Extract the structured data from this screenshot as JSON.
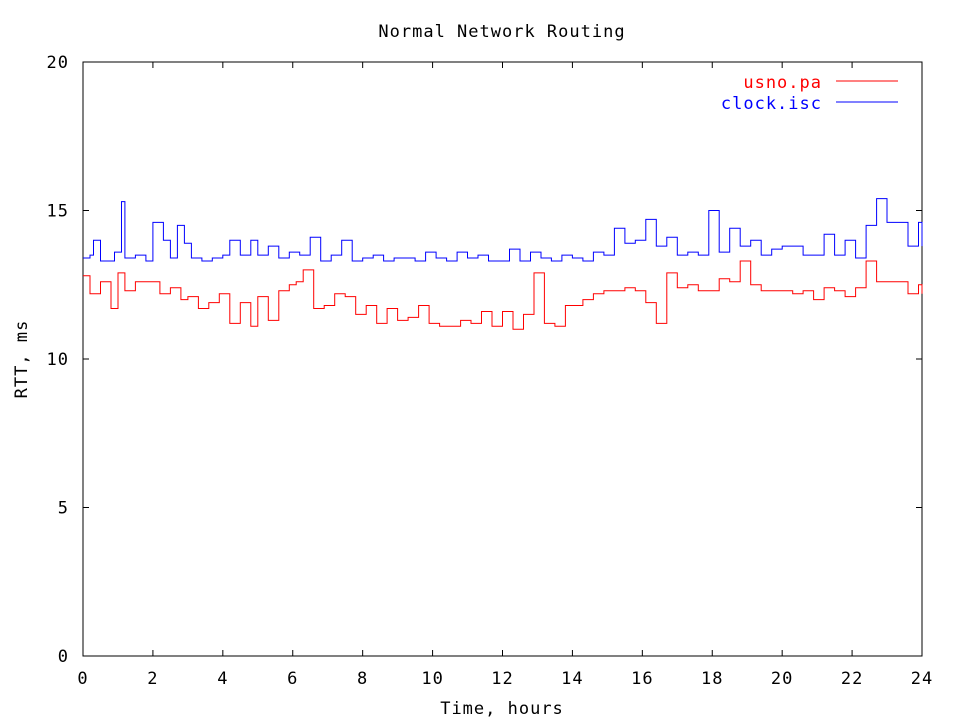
{
  "chart_data": {
    "type": "line",
    "title": "Normal Network Routing",
    "xlabel": "Time, hours",
    "ylabel": "RTT, ms",
    "xlim": [
      0,
      24
    ],
    "ylim": [
      0,
      20
    ],
    "xticks": [
      0,
      2,
      4,
      6,
      8,
      10,
      12,
      14,
      16,
      18,
      20,
      22,
      24
    ],
    "yticks": [
      0,
      5,
      10,
      15,
      20
    ],
    "grid": false,
    "legend_position": "top-right",
    "series": [
      {
        "name": "usno.pa",
        "color": "#ff0000",
        "x": [
          0,
          0.2,
          0.5,
          0.8,
          1.0,
          1.2,
          1.5,
          1.8,
          2.0,
          2.2,
          2.5,
          2.8,
          3.0,
          3.3,
          3.6,
          3.9,
          4.2,
          4.5,
          4.8,
          5.0,
          5.3,
          5.6,
          5.9,
          6.1,
          6.3,
          6.6,
          6.9,
          7.2,
          7.5,
          7.8,
          8.1,
          8.4,
          8.7,
          9.0,
          9.3,
          9.6,
          9.9,
          10.2,
          10.5,
          10.8,
          11.1,
          11.4,
          11.7,
          12.0,
          12.3,
          12.6,
          12.9,
          13.2,
          13.5,
          13.8,
          14.0,
          14.3,
          14.6,
          14.9,
          15.2,
          15.5,
          15.8,
          16.1,
          16.4,
          16.7,
          17.0,
          17.3,
          17.6,
          17.9,
          18.2,
          18.5,
          18.8,
          19.1,
          19.4,
          19.7,
          20.0,
          20.3,
          20.6,
          20.9,
          21.2,
          21.5,
          21.8,
          22.1,
          22.4,
          22.7,
          23.0,
          23.3,
          23.6,
          23.9,
          24.0
        ],
        "values": [
          12.8,
          12.2,
          12.6,
          11.7,
          12.9,
          12.3,
          12.6,
          12.6,
          12.6,
          12.2,
          12.4,
          12.0,
          12.1,
          11.7,
          11.9,
          12.2,
          11.2,
          11.9,
          11.1,
          12.1,
          11.3,
          12.3,
          12.5,
          12.6,
          13.0,
          11.7,
          11.8,
          12.2,
          12.1,
          11.5,
          11.8,
          11.2,
          11.7,
          11.3,
          11.4,
          11.8,
          11.2,
          11.1,
          11.1,
          11.3,
          11.2,
          11.6,
          11.1,
          11.6,
          11.0,
          11.5,
          12.9,
          11.2,
          11.1,
          11.8,
          11.8,
          12.0,
          12.2,
          12.3,
          12.3,
          12.4,
          12.3,
          11.9,
          11.2,
          12.9,
          12.4,
          12.5,
          12.3,
          12.3,
          12.7,
          12.6,
          13.3,
          12.5,
          12.3,
          12.3,
          12.3,
          12.2,
          12.3,
          12.0,
          12.4,
          12.3,
          12.1,
          12.4,
          13.3,
          12.6,
          12.6,
          12.6,
          12.2,
          12.5,
          12.2
        ]
      },
      {
        "name": "clock.isc",
        "color": "#0000ff",
        "x": [
          0,
          0.2,
          0.3,
          0.5,
          0.7,
          0.9,
          1.1,
          1.2,
          1.5,
          1.8,
          2.0,
          2.3,
          2.5,
          2.7,
          2.9,
          3.1,
          3.4,
          3.7,
          4.0,
          4.2,
          4.5,
          4.8,
          5.0,
          5.3,
          5.6,
          5.9,
          6.2,
          6.5,
          6.8,
          7.1,
          7.4,
          7.7,
          8.0,
          8.3,
          8.6,
          8.9,
          9.2,
          9.5,
          9.8,
          10.1,
          10.4,
          10.7,
          11.0,
          11.3,
          11.6,
          11.9,
          12.2,
          12.5,
          12.8,
          13.1,
          13.4,
          13.7,
          14.0,
          14.3,
          14.6,
          14.9,
          15.2,
          15.5,
          15.8,
          16.1,
          16.4,
          16.7,
          17.0,
          17.3,
          17.6,
          17.9,
          18.2,
          18.5,
          18.8,
          19.1,
          19.4,
          19.7,
          20.0,
          20.3,
          20.6,
          20.9,
          21.2,
          21.5,
          21.8,
          22.1,
          22.4,
          22.7,
          23.0,
          23.3,
          23.6,
          23.9,
          24.0
        ],
        "values": [
          13.4,
          13.5,
          14.0,
          13.3,
          13.3,
          13.6,
          15.3,
          13.4,
          13.5,
          13.3,
          14.6,
          14.0,
          13.4,
          14.5,
          13.9,
          13.4,
          13.3,
          13.4,
          13.5,
          14.0,
          13.5,
          14.0,
          13.5,
          13.8,
          13.4,
          13.6,
          13.5,
          14.1,
          13.3,
          13.5,
          14.0,
          13.3,
          13.4,
          13.5,
          13.3,
          13.4,
          13.4,
          13.3,
          13.6,
          13.4,
          13.3,
          13.6,
          13.4,
          13.5,
          13.3,
          13.3,
          13.7,
          13.3,
          13.6,
          13.4,
          13.3,
          13.5,
          13.4,
          13.3,
          13.6,
          13.5,
          14.4,
          13.9,
          14.0,
          14.7,
          13.8,
          14.1,
          13.5,
          13.6,
          13.5,
          15.0,
          13.6,
          14.4,
          13.8,
          14.0,
          13.5,
          13.7,
          13.8,
          13.8,
          13.5,
          13.5,
          14.2,
          13.5,
          14.0,
          13.4,
          14.5,
          15.4,
          14.6,
          14.6,
          13.8,
          14.6,
          13.8
        ]
      }
    ]
  }
}
